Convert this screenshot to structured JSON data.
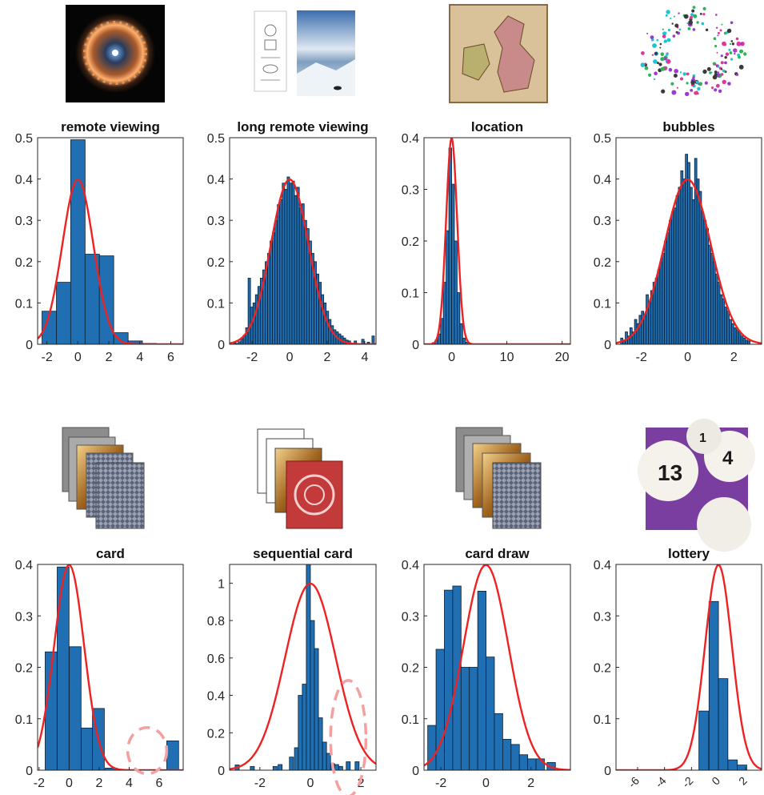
{
  "chart_data": [
    {
      "type": "bar",
      "title": "remote viewing",
      "xlim": [
        -2.6,
        6.8
      ],
      "ylim": [
        0,
        0.5
      ],
      "xticks": [
        -2,
        0,
        2,
        4,
        6
      ],
      "yticks": [
        0,
        0.1,
        0.2,
        0.3,
        0.4,
        0.5
      ],
      "bin_width": 0.93,
      "bins": [
        {
          "x": -1.85,
          "y": 0.08
        },
        {
          "x": -0.92,
          "y": 0.15
        },
        {
          "x": 0.0,
          "y": 0.495
        },
        {
          "x": 0.93,
          "y": 0.218
        },
        {
          "x": 1.85,
          "y": 0.214
        },
        {
          "x": 2.78,
          "y": 0.028
        },
        {
          "x": 3.7,
          "y": 0.008
        },
        {
          "x": 4.6,
          "y": 0.002
        }
      ],
      "highlight": null
    },
    {
      "type": "bar",
      "title": "long remote viewing",
      "xlim": [
        -3.2,
        4.6
      ],
      "ylim": [
        0,
        0.5
      ],
      "xticks": [
        -2,
        0,
        2,
        4
      ],
      "yticks": [
        0,
        0.1,
        0.2,
        0.3,
        0.4,
        0.5
      ],
      "bin_width": 0.13,
      "bins": [
        {
          "x": -2.93,
          "y": 0.003
        },
        {
          "x": -2.8,
          "y": 0.002
        },
        {
          "x": -2.67,
          "y": 0.006
        },
        {
          "x": -2.54,
          "y": 0.013
        },
        {
          "x": -2.41,
          "y": 0.022
        },
        {
          "x": -2.28,
          "y": 0.04
        },
        {
          "x": -2.15,
          "y": 0.16
        },
        {
          "x": -2.02,
          "y": 0.09
        },
        {
          "x": -1.89,
          "y": 0.1
        },
        {
          "x": -1.76,
          "y": 0.12
        },
        {
          "x": -1.63,
          "y": 0.14
        },
        {
          "x": -1.5,
          "y": 0.16
        },
        {
          "x": -1.37,
          "y": 0.18
        },
        {
          "x": -1.24,
          "y": 0.2
        },
        {
          "x": -1.11,
          "y": 0.22
        },
        {
          "x": -0.98,
          "y": 0.25
        },
        {
          "x": -0.85,
          "y": 0.27
        },
        {
          "x": -0.72,
          "y": 0.3
        },
        {
          "x": -0.59,
          "y": 0.338
        },
        {
          "x": -0.46,
          "y": 0.35
        },
        {
          "x": -0.33,
          "y": 0.39
        },
        {
          "x": -0.2,
          "y": 0.375
        },
        {
          "x": -0.07,
          "y": 0.405
        },
        {
          "x": 0.06,
          "y": 0.39
        },
        {
          "x": 0.19,
          "y": 0.395
        },
        {
          "x": 0.32,
          "y": 0.36
        },
        {
          "x": 0.45,
          "y": 0.38
        },
        {
          "x": 0.58,
          "y": 0.33
        },
        {
          "x": 0.71,
          "y": 0.34
        },
        {
          "x": 0.84,
          "y": 0.3
        },
        {
          "x": 0.97,
          "y": 0.28
        },
        {
          "x": 1.1,
          "y": 0.25
        },
        {
          "x": 1.23,
          "y": 0.22
        },
        {
          "x": 1.36,
          "y": 0.2
        },
        {
          "x": 1.49,
          "y": 0.17
        },
        {
          "x": 1.62,
          "y": 0.15
        },
        {
          "x": 1.75,
          "y": 0.12
        },
        {
          "x": 1.88,
          "y": 0.1
        },
        {
          "x": 2.01,
          "y": 0.08
        },
        {
          "x": 2.14,
          "y": 0.06
        },
        {
          "x": 2.27,
          "y": 0.045
        },
        {
          "x": 2.4,
          "y": 0.035
        },
        {
          "x": 2.53,
          "y": 0.03
        },
        {
          "x": 2.66,
          "y": 0.025
        },
        {
          "x": 2.79,
          "y": 0.02
        },
        {
          "x": 2.92,
          "y": 0.015
        },
        {
          "x": 3.05,
          "y": 0.01
        },
        {
          "x": 3.18,
          "y": 0.008
        },
        {
          "x": 3.5,
          "y": 0.008
        },
        {
          "x": 3.9,
          "y": 0.012
        },
        {
          "x": 4.2,
          "y": 0.005
        },
        {
          "x": 4.45,
          "y": 0.02
        }
      ],
      "highlight": null
    },
    {
      "type": "bar",
      "title": "location",
      "xlim": [
        -5,
        21.5
      ],
      "ylim": [
        0,
        0.4
      ],
      "xticks": [
        0,
        10,
        20
      ],
      "yticks": [
        0,
        0.1,
        0.2,
        0.3,
        0.4
      ],
      "bin_width": 0.5,
      "bins": [
        {
          "x": -3.25,
          "y": 0.003
        },
        {
          "x": -2.75,
          "y": 0.008
        },
        {
          "x": -2.25,
          "y": 0.02
        },
        {
          "x": -1.75,
          "y": 0.05
        },
        {
          "x": -1.25,
          "y": 0.12
        },
        {
          "x": -0.75,
          "y": 0.22
        },
        {
          "x": -0.25,
          "y": 0.38
        },
        {
          "x": 0.25,
          "y": 0.31
        },
        {
          "x": 0.75,
          "y": 0.2
        },
        {
          "x": 1.25,
          "y": 0.1
        },
        {
          "x": 1.75,
          "y": 0.04
        },
        {
          "x": 2.25,
          "y": 0.012
        },
        {
          "x": 2.75,
          "y": 0.004
        }
      ],
      "highlight": null
    },
    {
      "type": "bar",
      "title": "bubbles",
      "xlim": [
        -3.1,
        3.2
      ],
      "ylim": [
        0,
        0.5
      ],
      "xticks": [
        -2,
        0,
        2
      ],
      "yticks": [
        0,
        0.1,
        0.2,
        0.3,
        0.4,
        0.5
      ],
      "bin_width": 0.1,
      "bins": [
        {
          "x": -2.85,
          "y": 0.015
        },
        {
          "x": -2.75,
          "y": 0.01
        },
        {
          "x": -2.65,
          "y": 0.03
        },
        {
          "x": -2.55,
          "y": 0.02
        },
        {
          "x": -2.45,
          "y": 0.04
        },
        {
          "x": -2.35,
          "y": 0.03
        },
        {
          "x": -2.25,
          "y": 0.06
        },
        {
          "x": -2.15,
          "y": 0.05
        },
        {
          "x": -2.05,
          "y": 0.07
        },
        {
          "x": -1.95,
          "y": 0.08
        },
        {
          "x": -1.85,
          "y": 0.07
        },
        {
          "x": -1.75,
          "y": 0.12
        },
        {
          "x": -1.65,
          "y": 0.1
        },
        {
          "x": -1.55,
          "y": 0.13
        },
        {
          "x": -1.45,
          "y": 0.15
        },
        {
          "x": -1.35,
          "y": 0.16
        },
        {
          "x": -1.25,
          "y": 0.18
        },
        {
          "x": -1.15,
          "y": 0.2
        },
        {
          "x": -1.05,
          "y": 0.22
        },
        {
          "x": -0.95,
          "y": 0.25
        },
        {
          "x": -0.85,
          "y": 0.27
        },
        {
          "x": -0.75,
          "y": 0.3
        },
        {
          "x": -0.65,
          "y": 0.32
        },
        {
          "x": -0.55,
          "y": 0.33
        },
        {
          "x": -0.45,
          "y": 0.36
        },
        {
          "x": -0.35,
          "y": 0.38
        },
        {
          "x": -0.25,
          "y": 0.42
        },
        {
          "x": -0.15,
          "y": 0.4
        },
        {
          "x": -0.05,
          "y": 0.46
        },
        {
          "x": 0.05,
          "y": 0.44
        },
        {
          "x": 0.15,
          "y": 0.38
        },
        {
          "x": 0.25,
          "y": 0.35
        },
        {
          "x": 0.35,
          "y": 0.45
        },
        {
          "x": 0.45,
          "y": 0.4
        },
        {
          "x": 0.55,
          "y": 0.37
        },
        {
          "x": 0.65,
          "y": 0.32
        },
        {
          "x": 0.75,
          "y": 0.3
        },
        {
          "x": 0.85,
          "y": 0.28
        },
        {
          "x": 0.95,
          "y": 0.24
        },
        {
          "x": 1.05,
          "y": 0.22
        },
        {
          "x": 1.15,
          "y": 0.2
        },
        {
          "x": 1.25,
          "y": 0.17
        },
        {
          "x": 1.35,
          "y": 0.15
        },
        {
          "x": 1.45,
          "y": 0.12
        },
        {
          "x": 1.55,
          "y": 0.11
        },
        {
          "x": 1.65,
          "y": 0.09
        },
        {
          "x": 1.75,
          "y": 0.08
        },
        {
          "x": 1.85,
          "y": 0.06
        },
        {
          "x": 1.95,
          "y": 0.05
        },
        {
          "x": 2.05,
          "y": 0.04
        },
        {
          "x": 2.15,
          "y": 0.035
        },
        {
          "x": 2.25,
          "y": 0.03
        },
        {
          "x": 2.35,
          "y": 0.02
        },
        {
          "x": 2.45,
          "y": 0.015
        },
        {
          "x": 2.55,
          "y": 0.01
        },
        {
          "x": 2.65,
          "y": 0.008
        }
      ],
      "highlight": null
    },
    {
      "type": "bar",
      "title": "card",
      "xlim": [
        -2.1,
        7.6
      ],
      "ylim": [
        0,
        0.4
      ],
      "xticks": [
        -2,
        0,
        2,
        4,
        6
      ],
      "yticks": [
        0,
        0.1,
        0.2,
        0.3,
        0.4
      ],
      "bin_width": 0.79,
      "bins": [
        {
          "x": -1.2,
          "y": 0.23
        },
        {
          "x": -0.4,
          "y": 0.395
        },
        {
          "x": 0.4,
          "y": 0.24
        },
        {
          "x": 1.2,
          "y": 0.082
        },
        {
          "x": 1.95,
          "y": 0.12
        },
        {
          "x": 2.8,
          "y": 0.004
        },
        {
          "x": 6.9,
          "y": 0.057
        }
      ],
      "highlight": {
        "cx": 5.2,
        "cy": 0.038,
        "rx": 2.6,
        "ry": 0.045
      }
    },
    {
      "type": "bar",
      "title": "sequential card",
      "xlim": [
        -3.2,
        2.6
      ],
      "ylim": [
        0,
        1.1
      ],
      "xticks": [
        -2,
        0,
        2
      ],
      "yticks": [
        0,
        0.2,
        0.4,
        0.6,
        0.8,
        1
      ],
      "bin_width": 0.16,
      "bins": [
        {
          "x": -2.9,
          "y": 0.028
        },
        {
          "x": -2.3,
          "y": 0.02
        },
        {
          "x": -1.4,
          "y": 0.02
        },
        {
          "x": -1.2,
          "y": 0.03
        },
        {
          "x": -0.75,
          "y": 0.07
        },
        {
          "x": -0.55,
          "y": 0.12
        },
        {
          "x": -0.4,
          "y": 0.4
        },
        {
          "x": -0.24,
          "y": 0.46
        },
        {
          "x": -0.08,
          "y": 1.15
        },
        {
          "x": 0.08,
          "y": 0.8
        },
        {
          "x": 0.24,
          "y": 0.65
        },
        {
          "x": 0.4,
          "y": 0.28
        },
        {
          "x": 0.56,
          "y": 0.15
        },
        {
          "x": 0.72,
          "y": 0.09
        },
        {
          "x": 0.88,
          "y": 0.035
        },
        {
          "x": 1.04,
          "y": 0.03
        },
        {
          "x": 1.2,
          "y": 0.02
        },
        {
          "x": 1.5,
          "y": 0.045
        },
        {
          "x": 1.85,
          "y": 0.045
        }
      ],
      "highlight": {
        "cx": 1.5,
        "cy": 0.17,
        "rx": 1.4,
        "ry": 0.31
      }
    },
    {
      "type": "bar",
      "title": "card draw",
      "xlim": [
        -2.75,
        3.75
      ],
      "ylim": [
        0,
        0.4
      ],
      "xticks": [
        -2,
        0,
        2
      ],
      "yticks": [
        0,
        0.1,
        0.2,
        0.3,
        0.4
      ],
      "bin_width": 0.37,
      "bins": [
        {
          "x": -2.4,
          "y": 0.087
        },
        {
          "x": -2.03,
          "y": 0.235
        },
        {
          "x": -1.66,
          "y": 0.35
        },
        {
          "x": -1.29,
          "y": 0.358
        },
        {
          "x": -0.92,
          "y": 0.2
        },
        {
          "x": -0.55,
          "y": 0.2
        },
        {
          "x": -0.18,
          "y": 0.348
        },
        {
          "x": 0.19,
          "y": 0.22
        },
        {
          "x": 0.56,
          "y": 0.11
        },
        {
          "x": 0.93,
          "y": 0.06
        },
        {
          "x": 1.3,
          "y": 0.05
        },
        {
          "x": 1.67,
          "y": 0.03
        },
        {
          "x": 2.04,
          "y": 0.022
        },
        {
          "x": 2.41,
          "y": 0.022
        },
        {
          "x": 2.9,
          "y": 0.015
        }
      ],
      "highlight": null
    },
    {
      "type": "bar",
      "title": "lottery",
      "xlim": [
        -7.6,
        3.2
      ],
      "ylim": [
        0,
        0.4
      ],
      "xticks": [
        -6,
        -4,
        -2,
        0,
        2
      ],
      "xtick_labels": [
        "-6",
        "-4",
        "-2",
        "0",
        "2"
      ],
      "yticks": [
        0,
        0.1,
        0.2,
        0.3,
        0.4
      ],
      "bin_width": 0.7,
      "bins": [
        {
          "x": -1.1,
          "y": 0.115
        },
        {
          "x": -0.35,
          "y": 0.328
        },
        {
          "x": 0.35,
          "y": 0.178
        },
        {
          "x": 1.05,
          "y": 0.02
        },
        {
          "x": 1.75,
          "y": 0.01
        }
      ],
      "highlight": null
    }
  ]
}
